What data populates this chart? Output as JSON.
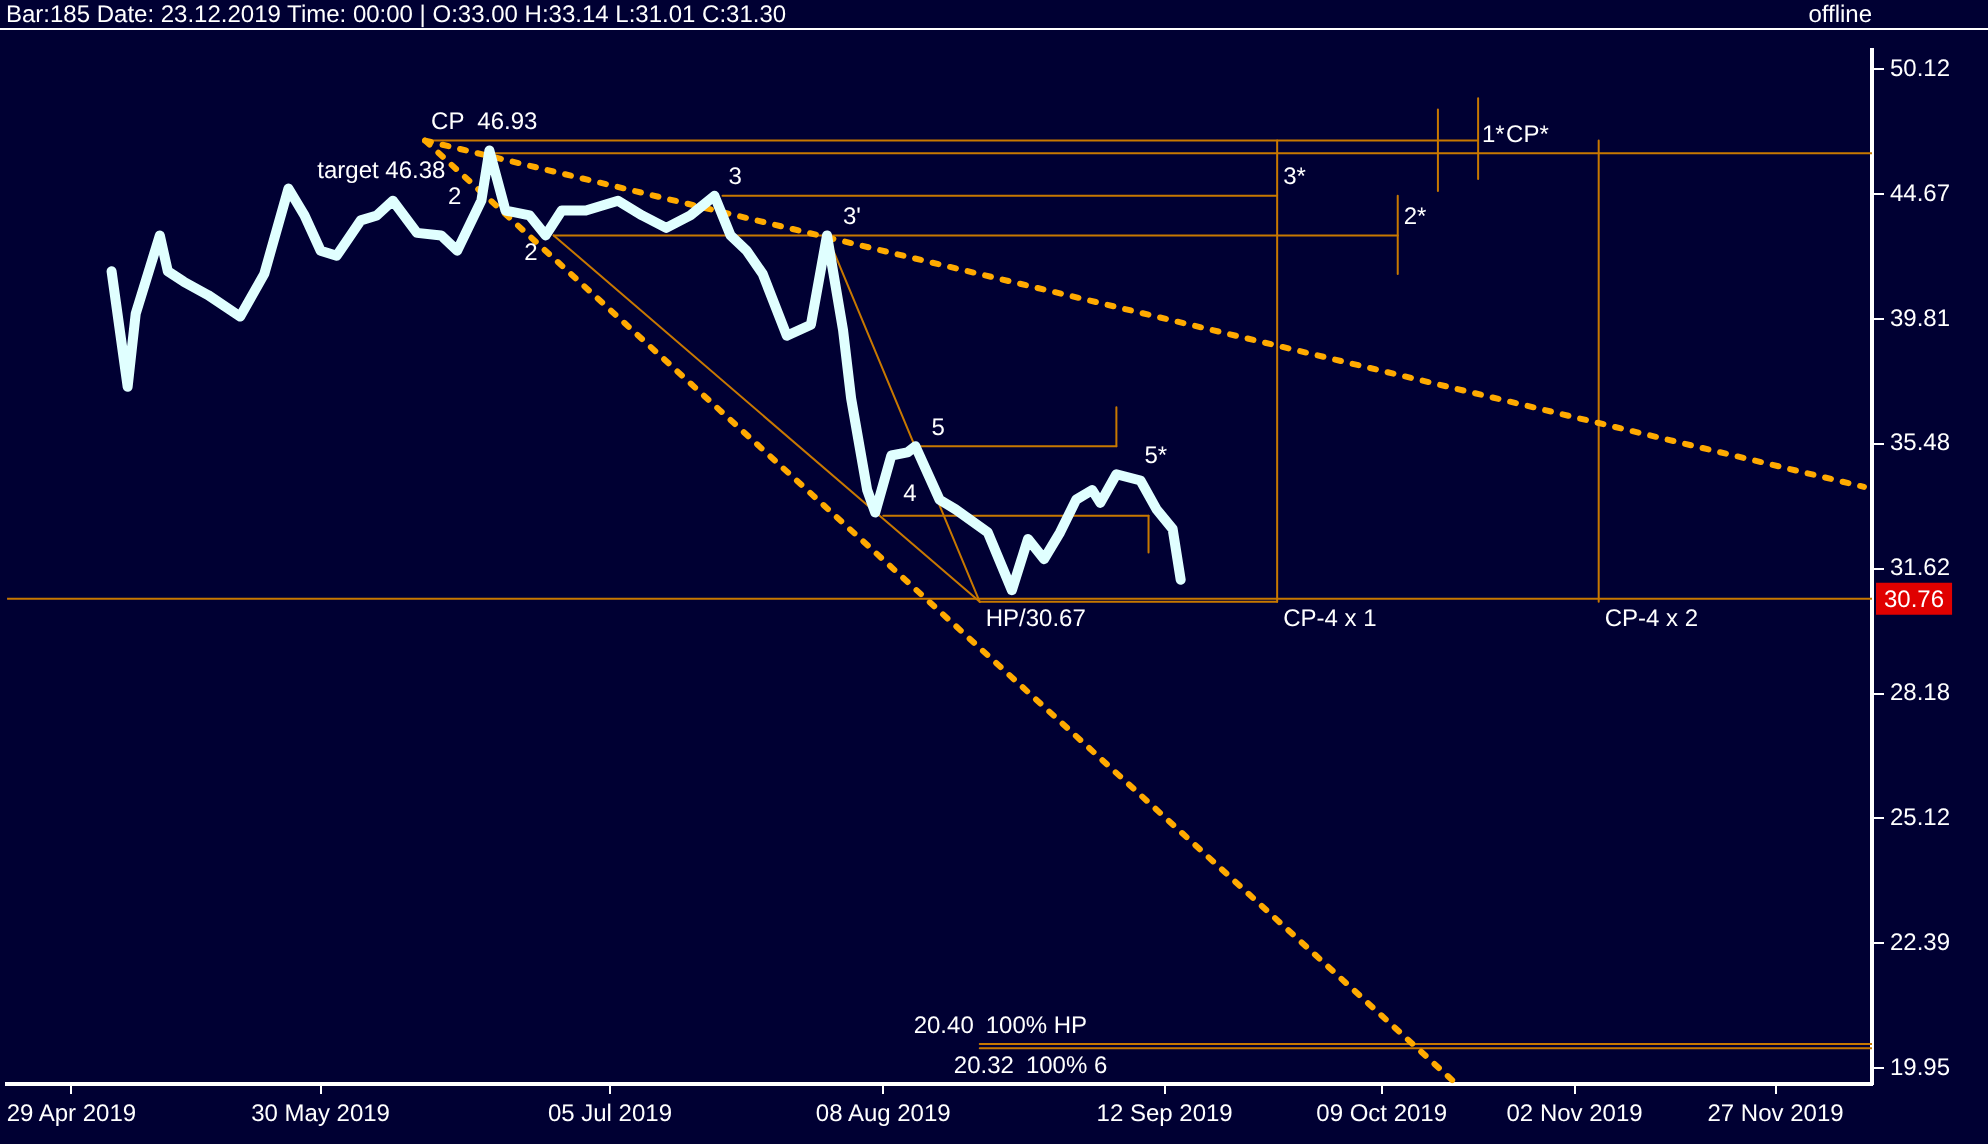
{
  "chart_data": {
    "type": "line",
    "title": "Bar:185 Date: 23.12.2019 Time: 00:00 | O:33.00 H:33.14 L:31.01 C:31.30",
    "annotations": [
      "offline",
      {
        "text": "CP  46.93",
        "x": "2019-06-12",
        "y": 46.93
      },
      {
        "text": "target 46.38",
        "x": "2019-06-20",
        "y": 46.38
      },
      {
        "text": "2",
        "x": "2019-06-20",
        "y": 43.8
      },
      {
        "text": "2",
        "x": "2019-06-28",
        "y": 43.0
      },
      {
        "text": "3",
        "x": "2019-07-19",
        "y": 44.6
      },
      {
        "text": "3'",
        "x": "2019-08-01",
        "y": 43.0
      },
      {
        "text": "4",
        "x": "2019-08-07",
        "y": 33.3
      },
      {
        "text": "5",
        "x": "2019-08-12",
        "y": 35.4
      },
      {
        "text": "5*",
        "x": "2019-09-06",
        "y": 34.5
      },
      {
        "text": "HP/30.67",
        "x": "2019-08-20",
        "y": 30.67
      },
      {
        "text": "3*",
        "x": "2019-09-26",
        "y": 44.6
      },
      {
        "text": "2*",
        "x": "2019-10-11",
        "y": 43.0
      },
      {
        "text": "1*",
        "x": "2019-10-16",
        "y": 46.38
      },
      {
        "text": "CP*",
        "x": "2019-10-21",
        "y": 46.38
      },
      {
        "text": "CP-4 x 1",
        "x": "2019-09-26",
        "y": 30.67
      },
      {
        "text": "CP-4 x 2",
        "x": "2019-11-05",
        "y": 30.67
      },
      {
        "text": "100% HP",
        "x": "2019-08-20",
        "y": 20.4
      },
      {
        "text": "20.40",
        "x": "2019-08-20",
        "y": 20.4
      },
      {
        "text": "100% 6",
        "x": "2019-08-25",
        "y": 20.32
      },
      {
        "text": "20.32",
        "x": "2019-08-25",
        "y": 20.32
      }
    ],
    "xlim": [
      "2019-04-21",
      "2019-12-09"
    ],
    "xticks": [
      {
        "value": "2019-04-29",
        "label": "29 Apr 2019"
      },
      {
        "value": "2019-05-30",
        "label": "30 May 2019"
      },
      {
        "value": "2019-07-05",
        "label": "05 Jul 2019"
      },
      {
        "value": "2019-08-08",
        "label": "08 Aug 2019"
      },
      {
        "value": "2019-09-12",
        "label": "12 Sep 2019"
      },
      {
        "value": "2019-10-09",
        "label": "09 Oct 2019"
      },
      {
        "value": "2019-11-02",
        "label": "02 Nov 2019"
      },
      {
        "value": "2019-11-27",
        "label": "27 Nov 2019"
      }
    ],
    "ylim": [
      19.66,
      51.0
    ],
    "yticks": [
      19.95,
      22.39,
      25.12,
      28.18,
      31.62,
      35.48,
      39.81,
      44.67,
      50.12
    ],
    "log": "y",
    "legend": false,
    "marker": "none",
    "ref_lines": [
      {
        "axis": "y",
        "value": 30.76,
        "label": "30.76",
        "color": "#c87800"
      }
    ],
    "series": [
      {
        "color": "#e0ffff",
        "line_style": "solid",
        "x": [
          "2019-05-04",
          "2019-05-06",
          "2019-05-07",
          "2019-05-10",
          "2019-05-11",
          "2019-05-13",
          "2019-05-16",
          "2019-05-20",
          "2019-05-23",
          "2019-05-26",
          "2019-05-28",
          "2019-05-30",
          "2019-06-01",
          "2019-06-04",
          "2019-06-06",
          "2019-06-08",
          "2019-06-11",
          "2019-06-14",
          "2019-06-16",
          "2019-06-19",
          "2019-06-20",
          "2019-06-22",
          "2019-06-25",
          "2019-06-27",
          "2019-06-29",
          "2019-07-02",
          "2019-07-06",
          "2019-07-09",
          "2019-07-12",
          "2019-07-15",
          "2019-07-18",
          "2019-07-20",
          "2019-07-22",
          "2019-07-24",
          "2019-07-27",
          "2019-07-30",
          "2019-08-01",
          "2019-08-03",
          "2019-08-04",
          "2019-08-06",
          "2019-08-07",
          "2019-08-09",
          "2019-08-11",
          "2019-08-12",
          "2019-08-15",
          "2019-08-17",
          "2019-08-21",
          "2019-08-24",
          "2019-08-26",
          "2019-08-28",
          "2019-08-30",
          "2019-09-01",
          "2019-09-03",
          "2019-09-04",
          "2019-09-06",
          "2019-09-09",
          "2019-09-11",
          "2019-09-13",
          "2019-09-14"
        ],
        "values": [
          41.6,
          37.4,
          40.0,
          43.0,
          41.6,
          41.2,
          40.7,
          39.9,
          41.5,
          44.9,
          43.8,
          42.4,
          42.2,
          43.6,
          43.8,
          44.4,
          43.1,
          43.0,
          42.4,
          44.4,
          46.5,
          44.0,
          43.8,
          43.0,
          44.0,
          44.0,
          44.4,
          43.8,
          43.3,
          43.8,
          44.6,
          43.0,
          42.4,
          41.5,
          39.2,
          39.6,
          43.0,
          39.4,
          37.0,
          34.0,
          33.3,
          35.1,
          35.2,
          35.4,
          33.7,
          33.4,
          32.7,
          31.0,
          32.5,
          31.9,
          32.7,
          33.7,
          34.0,
          33.6,
          34.5,
          34.3,
          33.4,
          32.8,
          31.3
        ]
      },
      {
        "color": "#ffaa00",
        "line_style": "dotted",
        "x": [
          "2019-06-12",
          "2019-10-18"
        ],
        "values": [
          46.93,
          19.7
        ]
      },
      {
        "color": "#ffaa00",
        "line_style": "dotted",
        "x": [
          "2019-06-12",
          "2019-12-08"
        ],
        "values": [
          46.93,
          34.1
        ]
      },
      {
        "color": "#c87800",
        "line_style": "solid",
        "x": [
          "2019-06-28",
          "2019-08-20"
        ],
        "values": [
          43.0,
          30.67
        ]
      },
      {
        "color": "#c87800",
        "line_style": "solid",
        "x": [
          "2019-08-01",
          "2019-08-20"
        ],
        "values": [
          43.0,
          30.67
        ]
      },
      {
        "color": "#c87800",
        "line_style": "solid",
        "x": [
          "2019-06-12",
          "2019-10-21"
        ],
        "values": [
          46.93,
          46.93
        ]
      },
      {
        "color": "#c87800",
        "line_style": "solid",
        "x": [
          "2019-06-20",
          "2019-12-09"
        ],
        "values": [
          46.38,
          46.38
        ]
      },
      {
        "color": "#c87800",
        "line_style": "solid",
        "x": [
          "2019-07-19",
          "2019-09-26"
        ],
        "values": [
          44.6,
          44.6
        ]
      },
      {
        "color": "#c87800",
        "line_style": "solid",
        "x": [
          "2019-06-28",
          "2019-10-11"
        ],
        "values": [
          43.0,
          43.0
        ]
      },
      {
        "color": "#c87800",
        "line_style": "solid",
        "x": [
          "2019-08-12",
          "2019-09-06"
        ],
        "values": [
          35.4,
          35.4
        ]
      },
      {
        "color": "#c87800",
        "line_style": "solid",
        "x": [
          "2019-08-08",
          "2019-09-10"
        ],
        "values": [
          33.2,
          33.2
        ]
      },
      {
        "color": "#c87800",
        "line_style": "solid",
        "x": [
          "2019-08-20",
          "2019-09-26"
        ],
        "values": [
          30.67,
          30.67
        ]
      },
      {
        "color": "#c87800",
        "line_style": "solid",
        "x": [
          "2019-08-20",
          "2019-12-09"
        ],
        "values": [
          20.4,
          20.4
        ]
      },
      {
        "color": "#c87800",
        "line_style": "solid",
        "x": [
          "2019-08-20",
          "2019-12-09"
        ],
        "values": [
          20.32,
          20.32
        ]
      },
      {
        "color": "#c87800",
        "line_style": "solid",
        "x": [
          "2019-09-26",
          "2019-09-26"
        ],
        "values": [
          46.93,
          30.67
        ]
      },
      {
        "color": "#c87800",
        "line_style": "solid",
        "x": [
          "2019-11-05",
          "2019-11-05"
        ],
        "values": [
          46.93,
          30.67
        ]
      },
      {
        "color": "#c87800",
        "line_style": "solid",
        "x": [
          "2019-10-11",
          "2019-10-11"
        ],
        "values": [
          44.6,
          41.5
        ]
      },
      {
        "color": "#c87800",
        "line_style": "solid",
        "x": [
          "2019-10-16",
          "2019-10-16"
        ],
        "values": [
          48.3,
          44.8
        ]
      },
      {
        "color": "#c87800",
        "line_style": "solid",
        "x": [
          "2019-10-21",
          "2019-10-21"
        ],
        "values": [
          48.8,
          45.3
        ]
      },
      {
        "color": "#c87800",
        "line_style": "solid",
        "x": [
          "2019-09-06",
          "2019-09-06"
        ],
        "values": [
          36.7,
          35.4
        ]
      },
      {
        "color": "#c87800",
        "line_style": "solid",
        "x": [
          "2019-09-10",
          "2019-09-10"
        ],
        "values": [
          33.2,
          32.1
        ]
      }
    ]
  }
}
